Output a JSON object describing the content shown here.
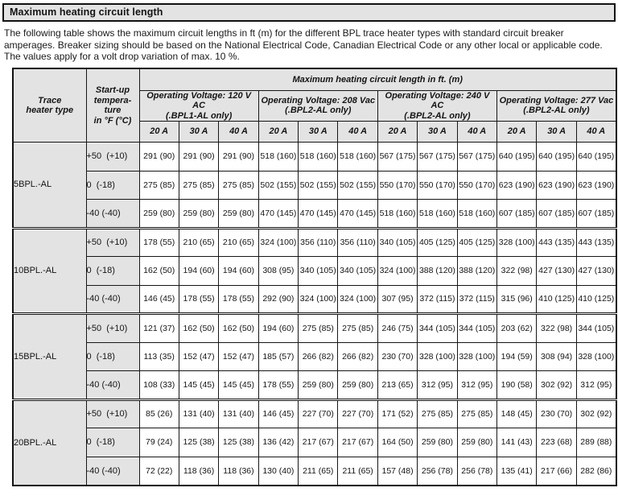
{
  "page": {
    "title": "Maximum heating circuit length",
    "intro": "The following table shows the maximum circuit lengths in ft (m) for the different BPL trace heater types with standard circuit breaker amperages. Breaker sizing should be based on the National Electrical Code, Canadian Electrical Code or any other local or applicable code. The values apply for a volt drop variation of max. 10 %."
  },
  "table": {
    "col1_header": "Trace\nheater type",
    "col2_header": "Start-up\ntempera-\nture\nin °F (°C)",
    "span_header": "Maximum heating circuit length in ft. (m)",
    "voltage_groups": [
      {
        "label": "Operating Voltage: 120 V AC\n(.BPL1-AL only)"
      },
      {
        "label": "Operating Voltage: 208 Vac\n(.BPL2-AL only)"
      },
      {
        "label": "Operating Voltage: 240 V AC\n(.BPL2-AL only)"
      },
      {
        "label": "Operating Voltage: 277 Vac\n(.BPL2-AL only)"
      }
    ],
    "amp_headers": [
      "20 A",
      "30 A",
      "40 A"
    ],
    "groups": [
      {
        "heater_type": "5BPL.-AL",
        "rows": [
          {
            "temp": "+50  (+10)",
            "values": [
              "291 (90)",
              "291 (90)",
              "291 (90)",
              "518 (160)",
              "518 (160)",
              "518 (160)",
              "567 (175)",
              "567 (175)",
              "567 (175)",
              "640 (195)",
              "640 (195)",
              "640 (195)"
            ]
          },
          {
            "temp": "0  (-18)",
            "values": [
              "275 (85)",
              "275 (85)",
              "275 (85)",
              "502 (155)",
              "502 (155)",
              "502 (155)",
              "550 (170)",
              "550 (170)",
              "550 (170)",
              "623 (190)",
              "623 (190)",
              "623 (190)"
            ]
          },
          {
            "temp": "-40 (-40)",
            "values": [
              "259 (80)",
              "259 (80)",
              "259 (80)",
              "470 (145)",
              "470 (145)",
              "470 (145)",
              "518 (160)",
              "518 (160)",
              "518 (160)",
              "607 (185)",
              "607 (185)",
              "607 (185)"
            ]
          }
        ]
      },
      {
        "heater_type": "10BPL.-AL",
        "rows": [
          {
            "temp": "+50  (+10)",
            "values": [
              "178 (55)",
              "210 (65)",
              "210 (65)",
              "324 (100)",
              "356 (110)",
              "356 (110)",
              "340 (105)",
              "405 (125)",
              "405 (125)",
              "328 (100)",
              "443 (135)",
              "443 (135)"
            ]
          },
          {
            "temp": "0  (-18)",
            "values": [
              "162 (50)",
              "194 (60)",
              "194 (60)",
              "308 (95)",
              "340 (105)",
              "340 (105)",
              "324 (100)",
              "388 (120)",
              "388 (120)",
              "322 (98)",
              "427 (130)",
              "427 (130)"
            ]
          },
          {
            "temp": "-40 (-40)",
            "values": [
              "146 (45)",
              "178 (55)",
              "178 (55)",
              "292 (90)",
              "324 (100)",
              "324 (100)",
              "307 (95)",
              "372 (115)",
              "372 (115)",
              "315 (96)",
              "410 (125)",
              "410 (125)"
            ]
          }
        ]
      },
      {
        "heater_type": "15BPL.-AL",
        "rows": [
          {
            "temp": "+50  (+10)",
            "values": [
              "121 (37)",
              "162 (50)",
              "162 (50)",
              "194 (60)",
              "275 (85)",
              "275 (85)",
              "246 (75)",
              "344 (105)",
              "344 (105)",
              "203 (62)",
              "322 (98)",
              "344 (105)"
            ]
          },
          {
            "temp": "0  (-18)",
            "values": [
              "113 (35)",
              "152 (47)",
              "152 (47)",
              "185 (57)",
              "266 (82)",
              "266 (82)",
              "230 (70)",
              "328 (100)",
              "328 (100)",
              "194 (59)",
              "308 (94)",
              "328 (100)"
            ]
          },
          {
            "temp": "-40 (-40)",
            "values": [
              "108 (33)",
              "145 (45)",
              "145 (45)",
              "178 (55)",
              "259 (80)",
              "259 (80)",
              "213 (65)",
              "312 (95)",
              "312 (95)",
              "190 (58)",
              "302 (92)",
              "312 (95)"
            ]
          }
        ]
      },
      {
        "heater_type": "20BPL.-AL",
        "rows": [
          {
            "temp": "+50  (+10)",
            "values": [
              "85 (26)",
              "131 (40)",
              "131 (40)",
              "146 (45)",
              "227 (70)",
              "227 (70)",
              "171 (52)",
              "275 (85)",
              "275 (85)",
              "148 (45)",
              "230 (70)",
              "302 (92)"
            ]
          },
          {
            "temp": "0  (-18)",
            "values": [
              "79 (24)",
              "125 (38)",
              "125 (38)",
              "136 (42)",
              "217 (67)",
              "217 (67)",
              "164 (50)",
              "259 (80)",
              "259 (80)",
              "141 (43)",
              "223 (68)",
              "289 (88)"
            ]
          },
          {
            "temp": "-40 (-40)",
            "values": [
              "72 (22)",
              "118 (36)",
              "118 (36)",
              "130 (40)",
              "211 (65)",
              "211 (65)",
              "157 (48)",
              "256 (78)",
              "256 (78)",
              "135 (41)",
              "217 (66)",
              "282 (86)"
            ]
          }
        ]
      }
    ]
  }
}
